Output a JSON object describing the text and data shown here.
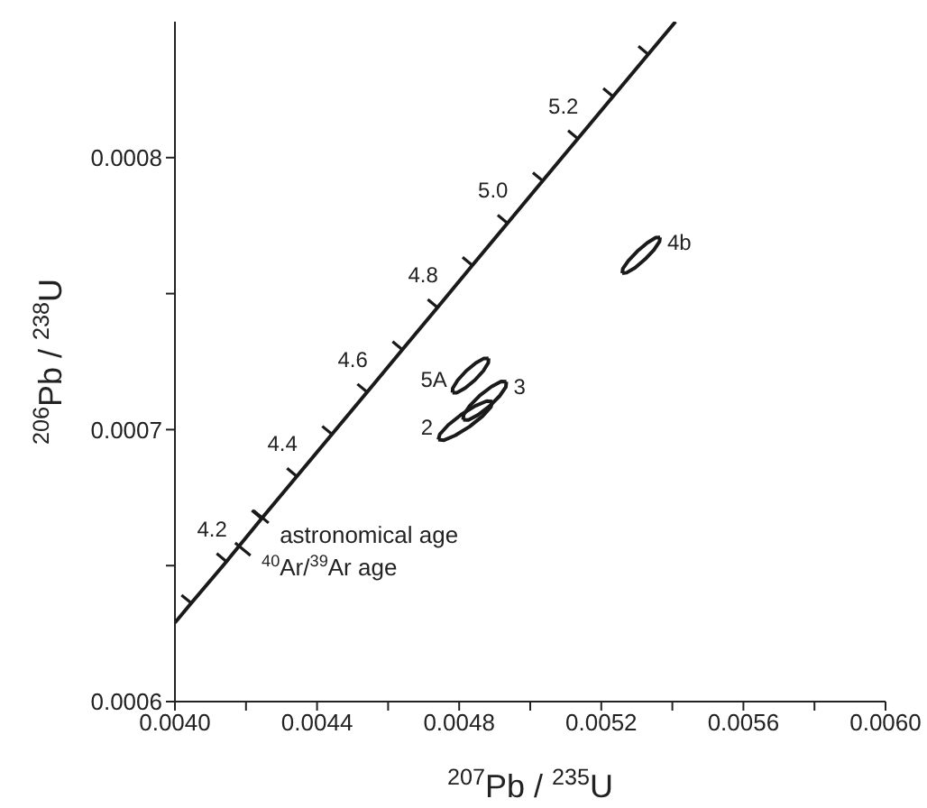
{
  "chart_data": {
    "type": "line",
    "xlabel": "$^{207}$Pb / $^{235}$U",
    "ylabel": "$^{206}$Pb / $^{238}$U",
    "xlim": [
      0.004,
      0.006
    ],
    "xticks": [
      {
        "value": 0.004,
        "label": "0.0040"
      },
      {
        "value": 0.0042,
        "label": null
      },
      {
        "value": 0.0044,
        "label": "0.0044"
      },
      {
        "value": 0.0046,
        "label": null
      },
      {
        "value": 0.0048,
        "label": "0.0048"
      },
      {
        "value": 0.005,
        "label": null
      },
      {
        "value": 0.0052,
        "label": "0.0052"
      },
      {
        "value": 0.0054,
        "label": null
      },
      {
        "value": 0.0056,
        "label": "0.0056"
      },
      {
        "value": 0.0058,
        "label": null
      },
      {
        "value": 0.006,
        "label": "0.0060"
      }
    ],
    "ylim": [
      0.0006,
      0.00085
    ],
    "yticks": [
      0.0006,
      {
        "value": 0.00065,
        "label": null
      },
      0.0007,
      {
        "value": 0.00075,
        "label": null
      },
      0.0008
    ],
    "series": [
      {
        "color": "#1a1a1a",
        "x": [
          0.004,
          0.004046,
          0.004145,
          0.004244,
          0.004343,
          0.004442,
          0.004541,
          0.00464,
          0.004739,
          0.004837,
          0.004936,
          0.005035,
          0.005134,
          0.005233,
          0.005332,
          0.005409
        ],
        "values": [
          0.000629,
          0.0006362,
          0.0006515,
          0.0006673,
          0.0006828,
          0.0006983,
          0.0007138,
          0.0007294,
          0.0007449,
          0.0007604,
          0.0007759,
          0.0007915,
          0.000807,
          0.0008225,
          0.000838,
          0.00085
        ]
      },
      {
        "type": "scatter",
        "name": "astronomical age",
        "color": "#1a1a1a",
        "x": [
          0.004244
        ],
        "values": [
          0.0006678
        ]
      },
      {
        "type": "scatter",
        "name": "$^{40}$Ar/$^{39}$Ar age",
        "color": "#1a1a1a",
        "x": [
          0.004193
        ],
        "values": [
          0.0006558
        ]
      },
      {
        "type": "line",
        "name": "5A",
        "marker": "none",
        "color": "#1a1a1a",
        "x": [
          0.0047812,
          0.0047941,
          0.0048172,
          0.0048442,
          0.004868,
          0.0048821,
          0.0048828
        ],
        "values": [
          0.0007136,
          0.0007136,
          0.0007153,
          0.0007182,
          0.0007216,
          0.0007246,
          0.0007262
        ]
      },
      {
        "type": "line",
        "marker": "none",
        "color": "#1a1a1a",
        "x": [
          0.0047812,
          0.0047819,
          0.004796,
          0.0048198,
          0.0048468,
          0.0048699,
          0.0048828
        ],
        "values": [
          0.0007136,
          0.0007152,
          0.0007182,
          0.0007216,
          0.0007245,
          0.0007262,
          0.0007262
        ]
      },
      {
        "type": "line",
        "name": "3",
        "marker": "none",
        "color": "#1a1a1a",
        "x": [
          0.0049329,
          0.0049314,
          0.0049141,
          0.0048854,
          0.0048532,
          0.004826,
          0.0048111
        ],
        "values": [
          0.0007176,
          0.0007157,
          0.0007124,
          0.0007086,
          0.0007054,
          0.0007035,
          0.0007036
        ]
      },
      {
        "type": "line",
        "marker": "none",
        "color": "#1a1a1a",
        "x": [
          0.0049329,
          0.004918,
          0.0048909,
          0.0048586,
          0.00483,
          0.0048126,
          0.0048111
        ],
        "values": [
          0.0007176,
          0.0007177,
          0.0007158,
          0.0007126,
          0.0007088,
          0.0007055,
          0.0007036
        ]
      },
      {
        "type": "line",
        "name": "2",
        "marker": "none",
        "color": "#1a1a1a",
        "x": [
          0.0047412,
          0.0047573,
          0.0047894,
          0.004829,
          0.0048655,
          0.0048891,
          0.0048934
        ],
        "values": [
          0.0006963,
          0.0006961,
          0.0006979,
          0.0007011,
          0.0007049,
          0.0007083,
          0.0007103
        ]
      },
      {
        "type": "line",
        "marker": "none",
        "color": "#1a1a1a",
        "x": [
          0.0047412,
          0.0047456,
          0.0047692,
          0.0048056,
          0.0048453,
          0.0048774,
          0.0048934
        ],
        "values": [
          0.0006963,
          0.0006983,
          0.0007017,
          0.0007055,
          0.0007087,
          0.0007105,
          0.0007103
        ]
      },
      {
        "type": "line",
        "name": "4b",
        "marker": "none",
        "color": "#1a1a1a",
        "x": [
          0.0053655,
          0.0053638,
          0.0053482,
          0.0053229,
          0.0052949,
          0.0052714,
          0.0052589
        ],
        "values": [
          0.0007707,
          0.0007691,
          0.0007661,
          0.0007626,
          0.0007595,
          0.0007577,
          0.0007575
        ]
      },
      {
        "type": "line",
        "marker": "none",
        "color": "#1a1a1a",
        "x": [
          0.0053655,
          0.0053531,
          0.0053296,
          0.0053015,
          0.0052763,
          0.0052607,
          0.0052589
        ],
        "values": [
          0.0007707,
          0.0007706,
          0.0007687,
          0.0007656,
          0.0007621,
          0.0007592,
          0.0007575
        ]
      }
    ],
    "annotations": [
      {
        "text": "4.2",
        "x": 0.004145,
        "y": 0.0006515
      },
      {
        "text": "4.4",
        "x": 0.004343,
        "y": 0.0006828
      },
      {
        "text": "4.6",
        "x": 0.004541,
        "y": 0.0007138
      },
      {
        "text": "4.8",
        "x": 0.004739,
        "y": 0.0007449
      },
      {
        "text": "5.0",
        "x": 0.004936,
        "y": 0.0007759
      },
      {
        "text": "5.2",
        "x": 0.005134,
        "y": 0.000807
      }
    ]
  }
}
